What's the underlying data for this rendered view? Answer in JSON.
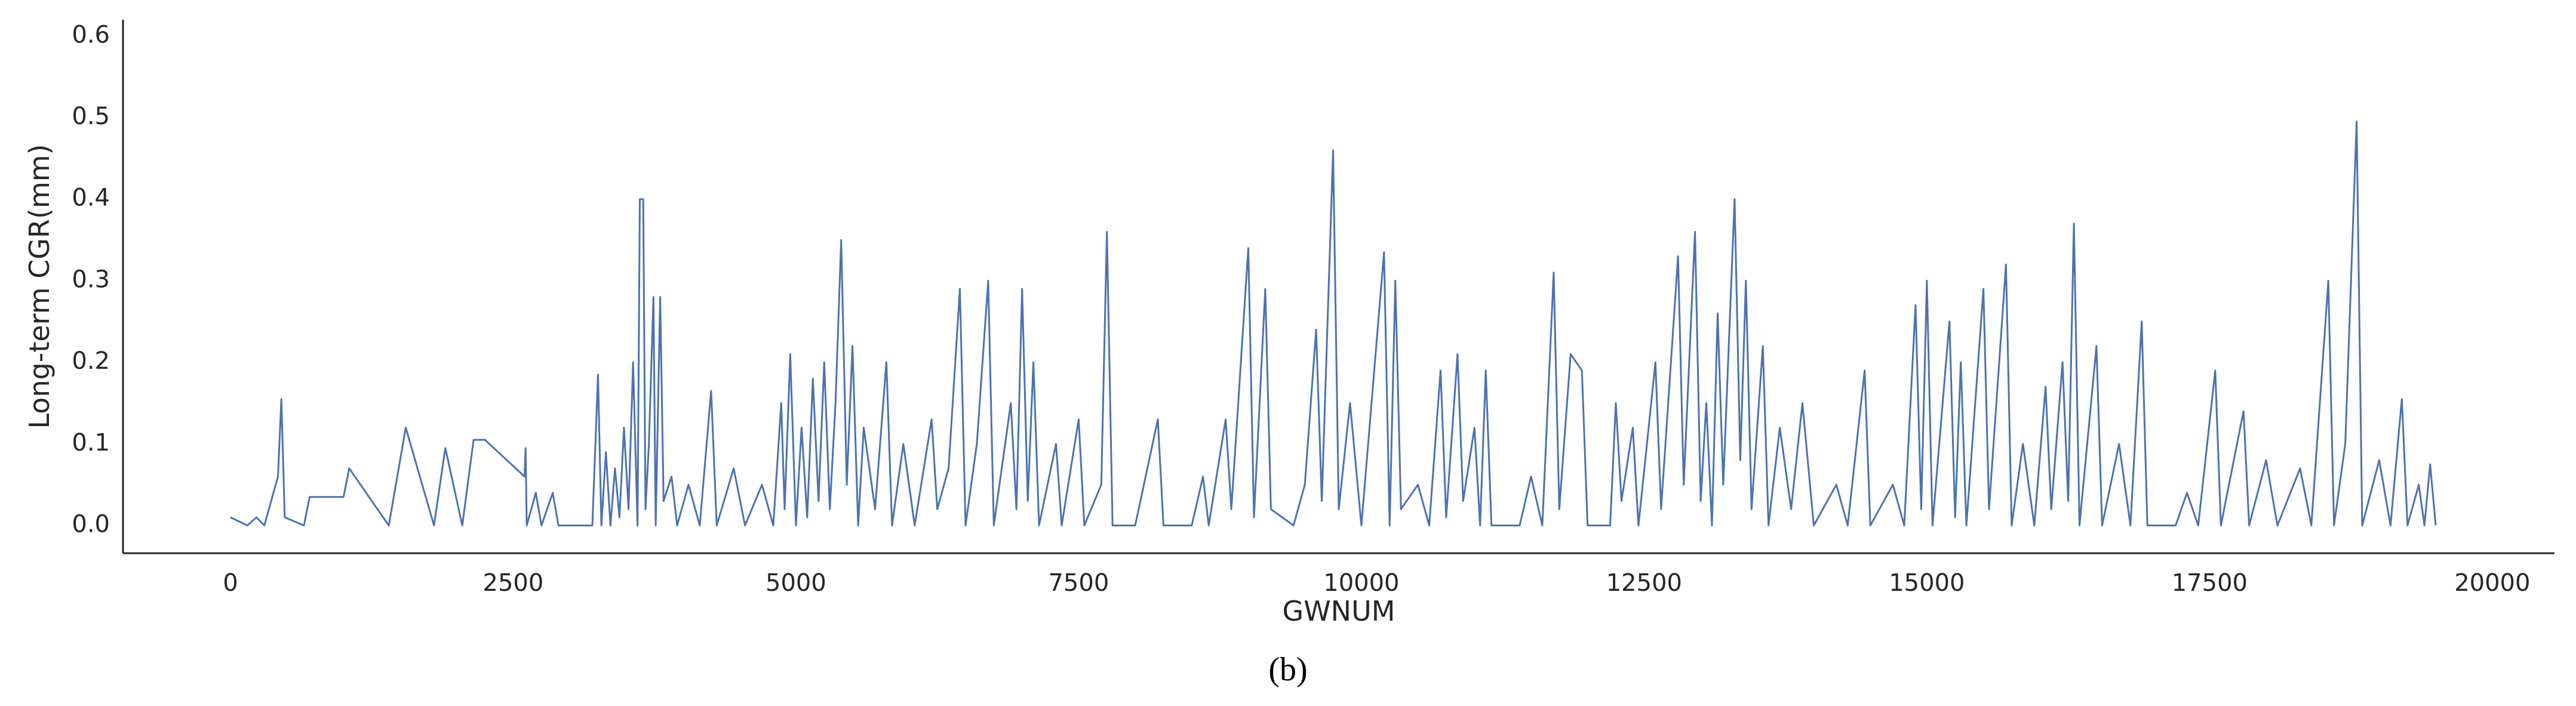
{
  "chart_data": {
    "type": "line",
    "xlabel": "GWNUM",
    "ylabel": "Long-term CGR(mm)",
    "caption": "(b)",
    "color": "#4c72b0",
    "grid": false,
    "xlim": [
      -950,
      20550
    ],
    "ylim": [
      -0.034,
      0.62
    ],
    "xticks": [
      0,
      2500,
      5000,
      7500,
      10000,
      12500,
      15000,
      17500,
      20000
    ],
    "yticks": [
      {
        "value": 0,
        "label": "0.0"
      },
      0.1,
      0.2,
      0.3,
      0.4,
      0.5,
      0.6
    ],
    "x": [
      0,
      150,
      230,
      300,
      420,
      450,
      480,
      650,
      700,
      1000,
      1050,
      1400,
      1550,
      1800,
      1900,
      2050,
      2150,
      2250,
      2600,
      2610,
      2620,
      2700,
      2750,
      2850,
      2900,
      3200,
      3250,
      3280,
      3320,
      3360,
      3400,
      3440,
      3480,
      3520,
      3560,
      3600,
      3620,
      3650,
      3670,
      3700,
      3740,
      3760,
      3800,
      3830,
      3900,
      3950,
      4050,
      4150,
      4250,
      4300,
      4450,
      4550,
      4700,
      4800,
      4870,
      4900,
      4950,
      5000,
      5050,
      5100,
      5150,
      5200,
      5250,
      5300,
      5350,
      5400,
      5450,
      5500,
      5550,
      5600,
      5700,
      5800,
      5850,
      5950,
      6050,
      6200,
      6250,
      6350,
      6450,
      6500,
      6600,
      6700,
      6750,
      6900,
      6950,
      7000,
      7050,
      7100,
      7150,
      7300,
      7350,
      7500,
      7550,
      7700,
      7750,
      7800,
      8000,
      8200,
      8250,
      8500,
      8600,
      8650,
      8800,
      8850,
      9000,
      9050,
      9150,
      9200,
      9400,
      9500,
      9600,
      9650,
      9750,
      9800,
      9900,
      10000,
      10200,
      10250,
      10300,
      10350,
      10500,
      10600,
      10700,
      10750,
      10850,
      10900,
      11000,
      11050,
      11100,
      11150,
      11400,
      11500,
      11600,
      11700,
      11750,
      11850,
      11950,
      12000,
      12200,
      12250,
      12300,
      12400,
      12450,
      12600,
      12650,
      12800,
      12850,
      12950,
      13000,
      13050,
      13100,
      13150,
      13200,
      13300,
      13350,
      13400,
      13450,
      13550,
      13600,
      13700,
      13800,
      13900,
      14000,
      14200,
      14300,
      14450,
      14500,
      14700,
      14800,
      14900,
      14950,
      15000,
      15050,
      15200,
      15250,
      15300,
      15350,
      15500,
      15550,
      15700,
      15750,
      15850,
      15950,
      16050,
      16100,
      16200,
      16250,
      16300,
      16350,
      16500,
      16550,
      16700,
      16800,
      16900,
      16950,
      17200,
      17300,
      17400,
      17550,
      17600,
      17800,
      17850,
      18000,
      18100,
      18300,
      18400,
      18550,
      18600,
      18700,
      18800,
      18850,
      19000,
      19100,
      19200,
      19250,
      19350,
      19400,
      19450,
      19500
    ],
    "values": [
      0.01,
      0,
      0.01,
      0,
      0.06,
      0.155,
      0.01,
      0,
      0.035,
      0.035,
      0.07,
      0,
      0.12,
      0,
      0.095,
      0,
      0.105,
      0.105,
      0.06,
      0.095,
      0,
      0.04,
      0,
      0.04,
      0,
      0,
      0.185,
      0,
      0.09,
      0,
      0.07,
      0.01,
      0.12,
      0.02,
      0.2,
      0,
      0.4,
      0.4,
      0.02,
      0.1,
      0.28,
      0,
      0.28,
      0.03,
      0.06,
      0,
      0.05,
      0,
      0.165,
      0,
      0.07,
      0,
      0.05,
      0,
      0.15,
      0.02,
      0.21,
      0,
      0.12,
      0.01,
      0.18,
      0.03,
      0.2,
      0.02,
      0.15,
      0.35,
      0.05,
      0.22,
      0,
      0.12,
      0.02,
      0.2,
      0,
      0.1,
      0,
      0.13,
      0.02,
      0.07,
      0.29,
      0,
      0.1,
      0.3,
      0,
      0.15,
      0.02,
      0.29,
      0.03,
      0.2,
      0,
      0.1,
      0,
      0.13,
      0,
      0.05,
      0.36,
      0,
      0,
      0.13,
      0,
      0,
      0.06,
      0,
      0.13,
      0.02,
      0.34,
      0.01,
      0.29,
      0.02,
      0,
      0.05,
      0.24,
      0.03,
      0.46,
      0.02,
      0.15,
      0,
      0.335,
      0,
      0.3,
      0.02,
      0.05,
      0,
      0.19,
      0.01,
      0.21,
      0.03,
      0.12,
      0,
      0.19,
      0,
      0,
      0.06,
      0,
      0.31,
      0.02,
      0.21,
      0.19,
      0,
      0,
      0.15,
      0.03,
      0.12,
      0,
      0.2,
      0.02,
      0.33,
      0.05,
      0.36,
      0.03,
      0.15,
      0,
      0.26,
      0.05,
      0.4,
      0.08,
      0.3,
      0.02,
      0.22,
      0,
      0.12,
      0.02,
      0.15,
      0,
      0.05,
      0,
      0.19,
      0,
      0.05,
      0,
      0.27,
      0.02,
      0.3,
      0,
      0.25,
      0.01,
      0.2,
      0,
      0.29,
      0.02,
      0.32,
      0,
      0.1,
      0,
      0.17,
      0.02,
      0.2,
      0.03,
      0.37,
      0,
      0.22,
      0,
      0.1,
      0,
      0.25,
      0,
      0,
      0.04,
      0,
      0.19,
      0,
      0.14,
      0,
      0.08,
      0,
      0.07,
      0,
      0.3,
      0,
      0.1,
      0.495,
      0,
      0.08,
      0,
      0.155,
      0,
      0.05,
      0,
      0.075,
      0
    ]
  }
}
